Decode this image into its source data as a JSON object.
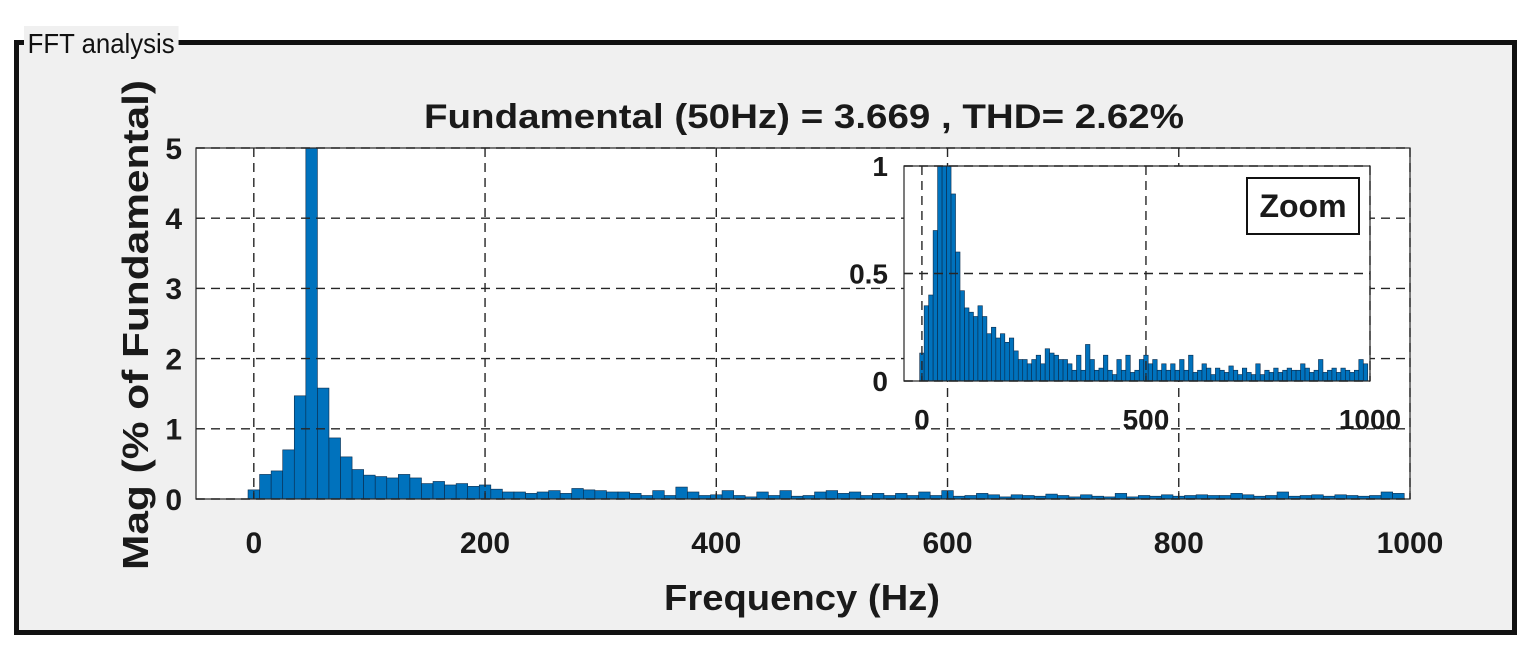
{
  "panel": {
    "title": "FFT analysis"
  },
  "colors": {
    "bar": "#0072bd",
    "bar_edge": "#0a2a4a",
    "panel_bg": "#f0f0f0",
    "axes_bg": "#ffffff",
    "grid": "#262626"
  },
  "chart_data": [
    {
      "type": "bar",
      "title": "Fundamental (50Hz) = 3.669 , THD= 2.62%",
      "xlabel": "Frequency (Hz)",
      "ylabel": "Mag (% of Fundamental)",
      "xlim": [
        -50,
        1000
      ],
      "ylim": [
        0,
        5
      ],
      "xticks": [
        0,
        200,
        400,
        600,
        800,
        1000
      ],
      "yticks": [
        0,
        1,
        2,
        3,
        4,
        5
      ],
      "grid": true,
      "bar_width_hz": 10,
      "x": [
        0,
        10,
        20,
        30,
        40,
        50,
        60,
        70,
        80,
        90,
        100,
        110,
        120,
        130,
        140,
        150,
        160,
        170,
        180,
        190,
        200,
        210,
        220,
        230,
        240,
        250,
        260,
        270,
        280,
        290,
        300,
        310,
        320,
        330,
        340,
        350,
        360,
        370,
        380,
        390,
        400,
        410,
        420,
        430,
        440,
        450,
        460,
        470,
        480,
        490,
        500,
        510,
        520,
        530,
        540,
        550,
        560,
        570,
        580,
        590,
        600,
        610,
        620,
        630,
        640,
        650,
        660,
        670,
        680,
        690,
        700,
        710,
        720,
        730,
        740,
        750,
        760,
        770,
        780,
        790,
        800,
        810,
        820,
        830,
        840,
        850,
        860,
        870,
        880,
        890,
        900,
        910,
        920,
        930,
        940,
        950,
        960,
        970,
        980,
        990
      ],
      "values": [
        0.13,
        0.35,
        0.4,
        0.7,
        1.47,
        5.0,
        1.58,
        0.87,
        0.6,
        0.42,
        0.34,
        0.32,
        0.3,
        0.35,
        0.3,
        0.22,
        0.25,
        0.2,
        0.22,
        0.18,
        0.2,
        0.14,
        0.1,
        0.1,
        0.08,
        0.1,
        0.12,
        0.08,
        0.15,
        0.13,
        0.12,
        0.1,
        0.1,
        0.08,
        0.05,
        0.12,
        0.05,
        0.17,
        0.1,
        0.05,
        0.06,
        0.12,
        0.05,
        0.03,
        0.1,
        0.05,
        0.12,
        0.04,
        0.05,
        0.1,
        0.12,
        0.08,
        0.1,
        0.05,
        0.08,
        0.05,
        0.08,
        0.05,
        0.1,
        0.05,
        0.12,
        0.04,
        0.05,
        0.08,
        0.06,
        0.03,
        0.06,
        0.05,
        0.04,
        0.07,
        0.05,
        0.03,
        0.06,
        0.04,
        0.03,
        0.08,
        0.03,
        0.05,
        0.04,
        0.06,
        0.04,
        0.05,
        0.06,
        0.05,
        0.05,
        0.08,
        0.06,
        0.04,
        0.05,
        0.1,
        0.04,
        0.05,
        0.06,
        0.04,
        0.06,
        0.05,
        0.04,
        0.05,
        0.1,
        0.08
      ]
    },
    {
      "type": "bar",
      "annotation": "Zoom",
      "xlim": [
        -40,
        1000
      ],
      "ylim": [
        0,
        1
      ],
      "xticks": [
        0,
        500,
        1000
      ],
      "yticks": [
        0,
        0.5,
        1
      ],
      "ytick_labels": [
        "0",
        "0.5",
        "1"
      ],
      "grid": true,
      "bar_width_hz": 10,
      "x": [
        0,
        10,
        20,
        30,
        40,
        50,
        60,
        70,
        80,
        90,
        100,
        110,
        120,
        130,
        140,
        150,
        160,
        170,
        180,
        190,
        200,
        210,
        220,
        230,
        240,
        250,
        260,
        270,
        280,
        290,
        300,
        310,
        320,
        330,
        340,
        350,
        360,
        370,
        380,
        390,
        400,
        410,
        420,
        430,
        440,
        450,
        460,
        470,
        480,
        490,
        500,
        510,
        520,
        530,
        540,
        550,
        560,
        570,
        580,
        590,
        600,
        610,
        620,
        630,
        640,
        650,
        660,
        670,
        680,
        690,
        700,
        710,
        720,
        730,
        740,
        750,
        760,
        770,
        780,
        790,
        800,
        810,
        820,
        830,
        840,
        850,
        860,
        870,
        880,
        890,
        900,
        910,
        920,
        930,
        940,
        950,
        960,
        970,
        980,
        990
      ],
      "values": [
        0.13,
        0.35,
        0.4,
        0.7,
        1.0,
        1.0,
        1.0,
        0.87,
        0.6,
        0.42,
        0.34,
        0.32,
        0.3,
        0.35,
        0.3,
        0.22,
        0.25,
        0.2,
        0.22,
        0.18,
        0.2,
        0.14,
        0.1,
        0.1,
        0.08,
        0.1,
        0.12,
        0.08,
        0.15,
        0.13,
        0.12,
        0.1,
        0.1,
        0.08,
        0.05,
        0.12,
        0.05,
        0.17,
        0.1,
        0.05,
        0.06,
        0.12,
        0.05,
        0.03,
        0.1,
        0.05,
        0.12,
        0.04,
        0.05,
        0.1,
        0.12,
        0.08,
        0.1,
        0.05,
        0.08,
        0.05,
        0.08,
        0.05,
        0.1,
        0.05,
        0.12,
        0.04,
        0.05,
        0.08,
        0.06,
        0.03,
        0.06,
        0.05,
        0.04,
        0.07,
        0.05,
        0.03,
        0.06,
        0.04,
        0.03,
        0.08,
        0.03,
        0.05,
        0.04,
        0.06,
        0.04,
        0.05,
        0.06,
        0.05,
        0.05,
        0.08,
        0.06,
        0.04,
        0.05,
        0.1,
        0.04,
        0.05,
        0.06,
        0.04,
        0.06,
        0.05,
        0.04,
        0.05,
        0.1,
        0.08
      ]
    }
  ]
}
